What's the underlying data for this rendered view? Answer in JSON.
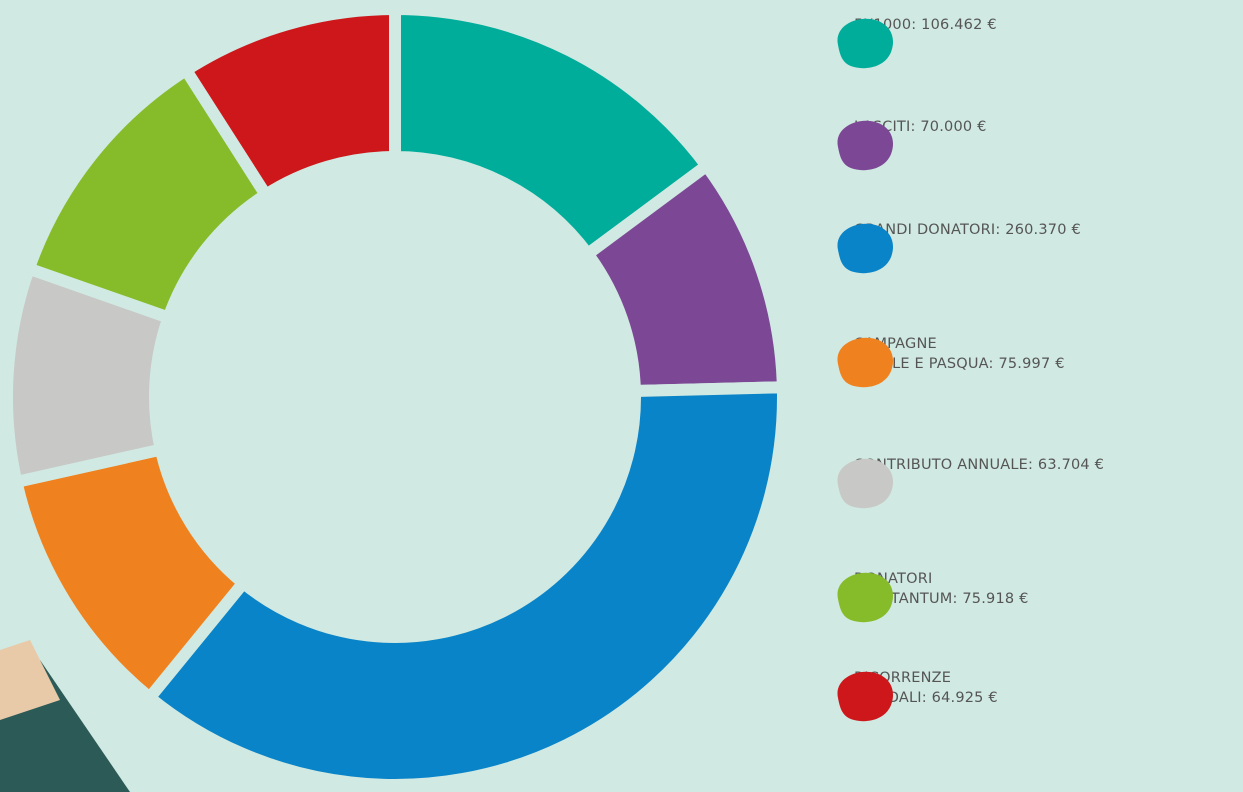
{
  "chart_data": {
    "type": "donut",
    "categories": [
      "5X1000:",
      "LASCITI:",
      "GRANDI DONATORI:",
      "CAMPAGNE\nNATALE E PASQUA:",
      "CONTRIBUTO ANNUALE:",
      "DONATORI\nUNA TANTUM:",
      "RICORRENZE\nSOLIDALI:"
    ],
    "values": [
      106462,
      70000,
      260370,
      75997,
      63704,
      75918,
      64925
    ],
    "value_labels": [
      "106.462 €",
      "70.000 €",
      "260.370 €",
      "75.997 €",
      "63.704 €",
      "75.918 €",
      "64.925 €"
    ],
    "colors": [
      "#00ad9b",
      "#7c4896",
      "#0a84c8",
      "#ef821e",
      "#c8c8c6",
      "#86bc2a",
      "#cd171b"
    ]
  }
}
